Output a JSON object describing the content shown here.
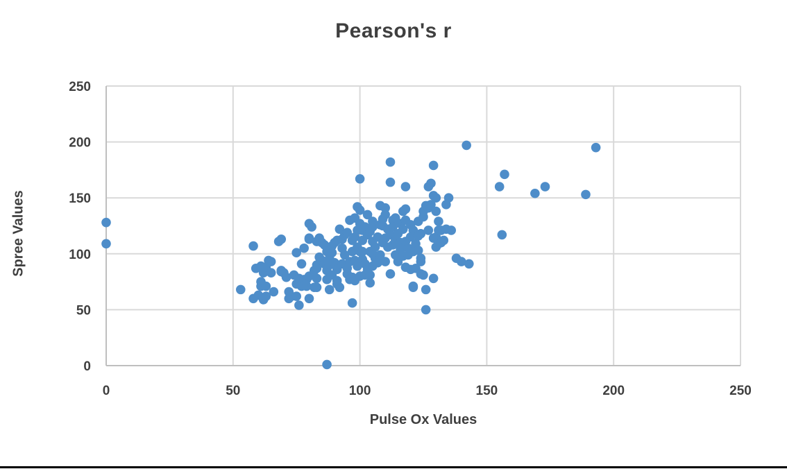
{
  "chart_data": {
    "type": "scatter",
    "title": "Pearson's r",
    "xlabel": "Pulse Ox Values",
    "ylabel": "Spree Values",
    "xlim": [
      0,
      250
    ],
    "ylim": [
      0,
      250
    ],
    "xticks": [
      0,
      50,
      100,
      150,
      200,
      250
    ],
    "yticks": [
      0,
      50,
      100,
      150,
      200,
      250
    ],
    "grid": true,
    "legend": false,
    "marker_color": "#4E8DC9",
    "grid_color": "#D9D9D9",
    "axis_color": "#BFBFBF",
    "text_color": "#3F3F3F",
    "points": [
      [
        0,
        128
      ],
      [
        0,
        109
      ],
      [
        87,
        1
      ],
      [
        53,
        68
      ],
      [
        58,
        107
      ],
      [
        58,
        60
      ],
      [
        59,
        87
      ],
      [
        60,
        63
      ],
      [
        61,
        71
      ],
      [
        61,
        89
      ],
      [
        61,
        75
      ],
      [
        62,
        83
      ],
      [
        62,
        59
      ],
      [
        63,
        62
      ],
      [
        63,
        71
      ],
      [
        63,
        88
      ],
      [
        64,
        94
      ],
      [
        65,
        93
      ],
      [
        65,
        83
      ],
      [
        66,
        66
      ],
      [
        68,
        111
      ],
      [
        69,
        113
      ],
      [
        69,
        85
      ],
      [
        69,
        84
      ],
      [
        70,
        83
      ],
      [
        71,
        79
      ],
      [
        72,
        66
      ],
      [
        72,
        60
      ],
      [
        73,
        62
      ],
      [
        74,
        81
      ],
      [
        75,
        73
      ],
      [
        75,
        62
      ],
      [
        75,
        101
      ],
      [
        76,
        78
      ],
      [
        76,
        54
      ],
      [
        77,
        91
      ],
      [
        77,
        71
      ],
      [
        78,
        105
      ],
      [
        78,
        77
      ],
      [
        79,
        77
      ],
      [
        79,
        71
      ],
      [
        80,
        127
      ],
      [
        80,
        114
      ],
      [
        80,
        113
      ],
      [
        80,
        80
      ],
      [
        80,
        60
      ],
      [
        81,
        124
      ],
      [
        82,
        85
      ],
      [
        82,
        70
      ],
      [
        83,
        111
      ],
      [
        83,
        90
      ],
      [
        83,
        87
      ],
      [
        83,
        78
      ],
      [
        83,
        70
      ],
      [
        84,
        114
      ],
      [
        84,
        97
      ],
      [
        85,
        110
      ],
      [
        85,
        94
      ],
      [
        86,
        108
      ],
      [
        86,
        91
      ],
      [
        87,
        102
      ],
      [
        87,
        85
      ],
      [
        87,
        77
      ],
      [
        88,
        96
      ],
      [
        88,
        90
      ],
      [
        88,
        68
      ],
      [
        89,
        107
      ],
      [
        89,
        101
      ],
      [
        89,
        81
      ],
      [
        90,
        110
      ],
      [
        90,
        92
      ],
      [
        91,
        86
      ],
      [
        91,
        76
      ],
      [
        91,
        73
      ],
      [
        91,
        112
      ],
      [
        92,
        122
      ],
      [
        92,
        70
      ],
      [
        93,
        113
      ],
      [
        93,
        105
      ],
      [
        93,
        91
      ],
      [
        94,
        117
      ],
      [
        94,
        99
      ],
      [
        95,
        119
      ],
      [
        95,
        87
      ],
      [
        95,
        82
      ],
      [
        96,
        130
      ],
      [
        96,
        93
      ],
      [
        96,
        77
      ],
      [
        97,
        112
      ],
      [
        97,
        102
      ],
      [
        97,
        79
      ],
      [
        97,
        56
      ],
      [
        98,
        132
      ],
      [
        98,
        115
      ],
      [
        98,
        94
      ],
      [
        98,
        76
      ],
      [
        99,
        142
      ],
      [
        99,
        121
      ],
      [
        99,
        106
      ],
      [
        99,
        89
      ],
      [
        100,
        167
      ],
      [
        100,
        139
      ],
      [
        100,
        127
      ],
      [
        100,
        102
      ],
      [
        100,
        80
      ],
      [
        101,
        112
      ],
      [
        101,
        102
      ],
      [
        101,
        95
      ],
      [
        101,
        121
      ],
      [
        102,
        124
      ],
      [
        102,
        91
      ],
      [
        102,
        81
      ],
      [
        103,
        135
      ],
      [
        103,
        117
      ],
      [
        103,
        86
      ],
      [
        104,
        120
      ],
      [
        104,
        102
      ],
      [
        104,
        81
      ],
      [
        104,
        74
      ],
      [
        105,
        124
      ],
      [
        105,
        111
      ],
      [
        105,
        100
      ],
      [
        105,
        89
      ],
      [
        105,
        129
      ],
      [
        106,
        106
      ],
      [
        106,
        96
      ],
      [
        107,
        115
      ],
      [
        107,
        92
      ],
      [
        108,
        143
      ],
      [
        108,
        126
      ],
      [
        108,
        99
      ],
      [
        109,
        125
      ],
      [
        109,
        131
      ],
      [
        109,
        110
      ],
      [
        110,
        141
      ],
      [
        110,
        135
      ],
      [
        110,
        114
      ],
      [
        110,
        93
      ],
      [
        111,
        122
      ],
      [
        111,
        106
      ],
      [
        112,
        182
      ],
      [
        112,
        164
      ],
      [
        112,
        117
      ],
      [
        112,
        82
      ],
      [
        113,
        124
      ],
      [
        113,
        108
      ],
      [
        113,
        130
      ],
      [
        114,
        132
      ],
      [
        114,
        112
      ],
      [
        114,
        99
      ],
      [
        115,
        118
      ],
      [
        115,
        93
      ],
      [
        116,
        127
      ],
      [
        116,
        110
      ],
      [
        116,
        104
      ],
      [
        117,
        138
      ],
      [
        117,
        122
      ],
      [
        117,
        98
      ],
      [
        118,
        160
      ],
      [
        118,
        140
      ],
      [
        118,
        130
      ],
      [
        118,
        111
      ],
      [
        118,
        88
      ],
      [
        119,
        105
      ],
      [
        119,
        99
      ],
      [
        120,
        126
      ],
      [
        120,
        115
      ],
      [
        120,
        86
      ],
      [
        121,
        121
      ],
      [
        121,
        102
      ],
      [
        121,
        71
      ],
      [
        121,
        70
      ],
      [
        122,
        109
      ],
      [
        122,
        87
      ],
      [
        123,
        129
      ],
      [
        123,
        116
      ],
      [
        123,
        103
      ],
      [
        124,
        118
      ],
      [
        124,
        96
      ],
      [
        124,
        93
      ],
      [
        124,
        82
      ],
      [
        125,
        138
      ],
      [
        125,
        133
      ],
      [
        125,
        81
      ],
      [
        126,
        143
      ],
      [
        126,
        68
      ],
      [
        126,
        50
      ],
      [
        127,
        160
      ],
      [
        127,
        143
      ],
      [
        127,
        141
      ],
      [
        127,
        121
      ],
      [
        128,
        163
      ],
      [
        128,
        144
      ],
      [
        129,
        179
      ],
      [
        129,
        152
      ],
      [
        129,
        114
      ],
      [
        129,
        78
      ],
      [
        130,
        150
      ],
      [
        130,
        138
      ],
      [
        130,
        115
      ],
      [
        130,
        106
      ],
      [
        131,
        129
      ],
      [
        131,
        121
      ],
      [
        131,
        109
      ],
      [
        132,
        121
      ],
      [
        132,
        110
      ],
      [
        133,
        112
      ],
      [
        134,
        144
      ],
      [
        134,
        122
      ],
      [
        135,
        150
      ],
      [
        136,
        121
      ],
      [
        138,
        96
      ],
      [
        140,
        93
      ],
      [
        142,
        197
      ],
      [
        143,
        91
      ],
      [
        156,
        117
      ],
      [
        155,
        160
      ],
      [
        157,
        171
      ],
      [
        169,
        154
      ],
      [
        173,
        160
      ],
      [
        189,
        153
      ],
      [
        193,
        195
      ]
    ]
  }
}
